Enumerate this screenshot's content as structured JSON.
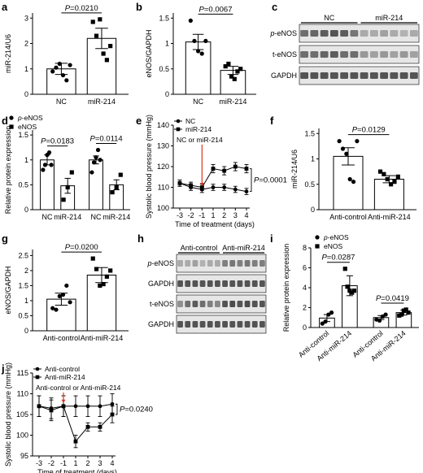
{
  "colors": {
    "ink": "#000000",
    "bar_fill": "#ffffff",
    "blot_bg": "#e6e6e6",
    "blot_band": "#3a3a3a",
    "arrow": "#e0301e"
  },
  "figure": {
    "panels": [
      {
        "id": "a",
        "type": "bar",
        "label": "a",
        "ylabel": "miR-214/U6",
        "categories": [
          "NC",
          "miR-214"
        ],
        "yticks": [
          0,
          1,
          2,
          3
        ],
        "ylim": [
          0,
          3.2
        ],
        "means": [
          1.0,
          2.2
        ],
        "errors": [
          0.22,
          0.4
        ],
        "points": [
          [
            0.9,
            1.05,
            1.2,
            0.75,
            0.55,
            1.15
          ],
          [
            2.85,
            2.3,
            2.95,
            1.6,
            1.35,
            1.9
          ]
        ],
        "markers": [
          "circle",
          "square"
        ],
        "p_text": "P=0.0210"
      },
      {
        "id": "b",
        "type": "bar",
        "label": "b",
        "ylabel": "eNOS/GAPDH",
        "categories": [
          "NC",
          "miR-214"
        ],
        "yticks": [
          0.0,
          0.5,
          1.0,
          1.5
        ],
        "ylim": [
          0,
          1.6
        ],
        "means": [
          1.03,
          0.47
        ],
        "errors": [
          0.15,
          0.08
        ],
        "points": [
          [
            1.45,
            1.05,
            0.85,
            0.8,
            1.05
          ],
          [
            0.55,
            0.6,
            0.35,
            0.3,
            0.45,
            0.5
          ]
        ],
        "markers": [
          "circle",
          "square"
        ],
        "p_text": "P=0.0067"
      },
      {
        "id": "c",
        "type": "blot",
        "label": "c",
        "group_labels": [
          "NC",
          "miR-214"
        ],
        "lanes": 12,
        "rows": [
          {
            "label": "p-eNOS",
            "intensities": [
              0.7,
              0.75,
              0.8,
              0.85,
              0.8,
              0.65,
              0.35,
              0.35,
              0.4,
              0.35,
              0.3,
              0.35
            ]
          },
          {
            "label": "t-eNOS",
            "intensities": [
              0.7,
              0.7,
              0.75,
              0.8,
              0.7,
              0.7,
              0.45,
              0.4,
              0.45,
              0.4,
              0.45,
              0.4
            ]
          },
          {
            "label": "GAPDH",
            "intensities": [
              0.85,
              0.85,
              0.85,
              0.85,
              0.85,
              0.85,
              0.85,
              0.85,
              0.85,
              0.85,
              0.85,
              0.85
            ]
          }
        ]
      },
      {
        "id": "d",
        "type": "bar",
        "label": "d",
        "ylabel": "Relative protein expression",
        "categories": [
          "NC",
          "miR-214",
          "NC",
          "miR-214"
        ],
        "yticks": [
          0.0,
          0.5,
          1.0,
          1.5
        ],
        "ylim": [
          0,
          1.6
        ],
        "means": [
          1.0,
          0.48,
          1.0,
          0.5
        ],
        "errors": [
          0.1,
          0.15,
          0.08,
          0.1
        ],
        "points": [
          [
            0.8,
            0.9,
            1.1,
            1.15,
            0.9
          ],
          [
            0.2,
            0.45,
            0.75
          ],
          [
            0.75,
            0.95,
            1.05,
            1.2,
            1.0
          ],
          [
            0.35,
            0.45,
            0.7
          ]
        ],
        "markers": [
          "circle",
          "square",
          "circle",
          "square"
        ],
        "legend": [
          {
            "name": "p-eNOS",
            "marker": "circle"
          },
          {
            "name": "eNOS",
            "marker": "square"
          }
        ],
        "p_texts": [
          {
            "text": "P=0.0183",
            "from": 0,
            "to": 1
          },
          {
            "text": "P=0.0114",
            "from": 2,
            "to": 3
          }
        ]
      },
      {
        "id": "e",
        "type": "line",
        "label": "e",
        "ylabel": "Systolic blood pressure (mmHg)",
        "xlabel": "Time of treatment (days)",
        "x": [
          -3,
          -2,
          -1,
          1,
          2,
          3,
          4
        ],
        "xticks": [
          "-3",
          "-2",
          "-1",
          "1",
          "2",
          "3",
          "4"
        ],
        "yticks": [
          100,
          110,
          120,
          130,
          140
        ],
        "ylim": [
          100,
          140
        ],
        "series": [
          {
            "name": "NC",
            "marker": "circle",
            "values": [
              112,
              110,
              109,
              110,
              110,
              109,
              108
            ],
            "errors": [
              1.5,
              1.5,
              1.5,
              1.5,
              1.5,
              1.5,
              1.5
            ]
          },
          {
            "name": "miR-214",
            "marker": "square",
            "values": [
              112,
              111,
              110,
              119,
              118,
              120,
              119
            ],
            "errors": [
              1.5,
              1.5,
              1.5,
              2,
              2,
              2,
              2
            ]
          }
        ],
        "annotation": "NC or miR-214",
        "p_text": "P=0.0001"
      },
      {
        "id": "f",
        "type": "bar",
        "label": "f",
        "ylabel": "miR-214/U6",
        "categories": [
          "Anti-control",
          "Anti-miR-214"
        ],
        "yticks": [
          0.0,
          0.5,
          1.0,
          1.5
        ],
        "ylim": [
          0,
          1.6
        ],
        "means": [
          1.05,
          0.6
        ],
        "errors": [
          0.17,
          0.07
        ],
        "points": [
          [
            1.35,
            1.2,
            1.1,
            0.6,
            0.55,
            1.35
          ],
          [
            0.75,
            0.7,
            0.6,
            0.5,
            0.55,
            0.65
          ]
        ],
        "markers": [
          "circle",
          "square"
        ],
        "p_text": "P=0.0129"
      },
      {
        "id": "g",
        "type": "bar",
        "label": "g",
        "ylabel": "eNOS/GAPDH",
        "categories": [
          "Anti-control",
          "Anti-miR-214"
        ],
        "yticks": [
          0.0,
          0.5,
          1.0,
          1.5,
          2.0,
          2.5
        ],
        "ylim": [
          0,
          2.7
        ],
        "means": [
          1.05,
          1.85
        ],
        "errors": [
          0.2,
          0.25
        ],
        "points": [
          [
            0.75,
            0.7,
            1.15,
            1.2,
            1.5,
            0.95
          ],
          [
            2.4,
            2.05,
            1.5,
            1.55,
            1.8,
            2.0
          ]
        ],
        "markers": [
          "circle",
          "square"
        ],
        "p_text": "P=0.0200"
      },
      {
        "id": "h",
        "type": "blot",
        "label": "h",
        "group_labels": [
          "Anti-control",
          "Anti-miR-214"
        ],
        "lanes": 12,
        "rows": [
          {
            "label": "p-eNOS",
            "intensities": [
              0.35,
              0.35,
              0.4,
              0.3,
              0.35,
              0.35,
              0.6,
              0.65,
              0.6,
              0.65,
              0.6,
              0.6
            ]
          },
          {
            "label": "GAPDH",
            "intensities": [
              0.85,
              0.85,
              0.85,
              0.85,
              0.85,
              0.85,
              0.85,
              0.85,
              0.85,
              0.85,
              0.85,
              0.85
            ]
          },
          {
            "label": "t-eNOS",
            "intensities": [
              0.5,
              0.7,
              0.8,
              0.7,
              0.6,
              0.55,
              0.85,
              0.9,
              0.85,
              0.9,
              0.85,
              0.85
            ]
          },
          {
            "label": "GAPDH",
            "intensities": [
              0.85,
              0.85,
              0.85,
              0.85,
              0.85,
              0.85,
              0.85,
              0.85,
              0.85,
              0.85,
              0.85,
              0.85
            ]
          }
        ]
      },
      {
        "id": "i",
        "type": "bar",
        "label": "i",
        "ylabel": "Relative protein expression",
        "categories": [
          "Anti-control",
          "Anti-miR-214",
          "Anti-control",
          "Anti-miR-214"
        ],
        "yticks": [
          0,
          2,
          4,
          6,
          8
        ],
        "ylim": [
          0,
          8
        ],
        "means": [
          0.95,
          4.2,
          1.0,
          1.5
        ],
        "errors": [
          0.35,
          1.0,
          0.2,
          0.25
        ],
        "points": [
          [
            0.4,
            0.6,
            1.3,
            1.5
          ],
          [
            5.9,
            4.1,
            3.7,
            3.5,
            3.7
          ],
          [
            0.8,
            0.7,
            1.1,
            1.3
          ],
          [
            1.2,
            1.3,
            1.7,
            1.8,
            1.5
          ]
        ],
        "markers": [
          "circle",
          "square",
          "circle",
          "square"
        ],
        "legend": [
          {
            "name": "p-eNOS",
            "marker": "circle"
          },
          {
            "name": "eNOS",
            "marker": "square"
          }
        ],
        "p_texts": [
          {
            "text": "P=0.0287",
            "from": 0,
            "to": 1
          },
          {
            "text": "P=0.0419",
            "from": 2,
            "to": 3
          }
        ]
      },
      {
        "id": "j",
        "type": "line",
        "label": "j",
        "ylabel": "Systolic blood pressure (mmHg)",
        "xlabel": "Time of treatment (days)",
        "x": [
          -3,
          -2,
          -1,
          1,
          2,
          3,
          4
        ],
        "xticks": [
          "-3",
          "-2",
          "-1",
          "1",
          "2",
          "3",
          "4"
        ],
        "yticks": [
          95,
          100,
          105,
          110,
          115
        ],
        "ylim": [
          95,
          115
        ],
        "series": [
          {
            "name": "Anti-control",
            "marker": "circle",
            "values": [
              107,
              106.5,
              107,
              107,
              107,
              107,
              107.5
            ],
            "errors": [
              2.5,
              2.5,
              2.5,
              2.5,
              2.5,
              2.5,
              2.5
            ]
          },
          {
            "name": "Anti-miR-214",
            "marker": "square",
            "values": [
              107,
              106,
              107,
              98.5,
              102,
              102,
              105
            ],
            "errors": [
              2.5,
              2.5,
              2.5,
              1.5,
              1.0,
              1.0,
              2.0
            ]
          }
        ],
        "annotation": "Anti-control or Anti-miR-214",
        "p_text": "P=0.0240"
      }
    ]
  }
}
